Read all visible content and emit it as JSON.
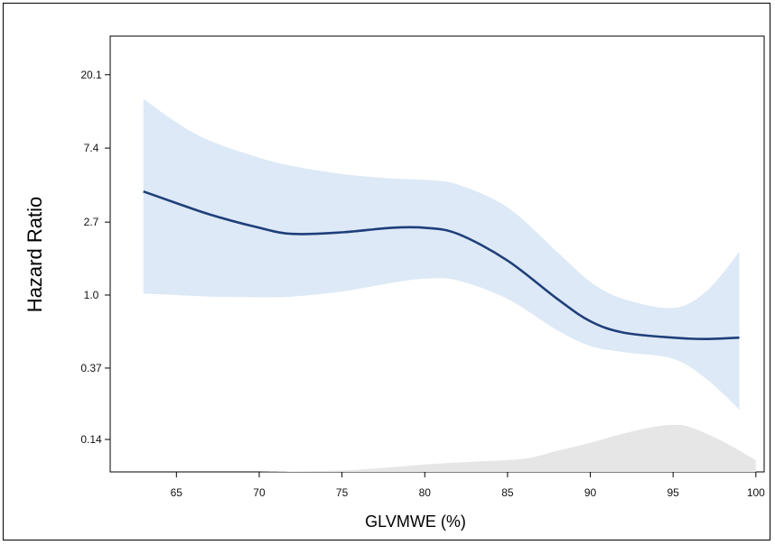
{
  "chart_data": {
    "type": "line",
    "title": "",
    "xlabel": "GLVMWE (%)",
    "ylabel": "Hazard Ratio",
    "y_scale": "log",
    "xlim": [
      61,
      100.5
    ],
    "ylim": [
      0.09,
      34
    ],
    "x_ticks": [
      65,
      70,
      75,
      80,
      85,
      90,
      95,
      100
    ],
    "y_ticks": [
      {
        "value": 20.1,
        "label": "20.1"
      },
      {
        "value": 7.4,
        "label": "7.4"
      },
      {
        "value": 2.7,
        "label": "2.7"
      },
      {
        "value": 1.0,
        "label": "1.0"
      },
      {
        "value": 0.37,
        "label": "0.37"
      },
      {
        "value": 0.14,
        "label": "0.14"
      }
    ],
    "grid": false,
    "legend": "none",
    "colors": {
      "line": "#1f3f7a",
      "band": "#dde9f6",
      "density": "#e6e6e6"
    },
    "series": [
      {
        "x": [
          63,
          65,
          67,
          70,
          72,
          75,
          78,
          80,
          82,
          85,
          88,
          90,
          92,
          95,
          97,
          99
        ],
        "y": [
          4.1,
          3.5,
          3.0,
          2.5,
          2.3,
          2.35,
          2.5,
          2.5,
          2.3,
          1.6,
          0.95,
          0.7,
          0.6,
          0.56,
          0.55,
          0.56
        ],
        "lower": [
          1.02,
          1.0,
          0.98,
          0.97,
          0.98,
          1.05,
          1.18,
          1.25,
          1.22,
          0.95,
          0.62,
          0.5,
          0.46,
          0.42,
          0.32,
          0.21
        ],
        "upper": [
          14.5,
          10.5,
          8.2,
          6.5,
          5.8,
          5.2,
          4.9,
          4.8,
          4.5,
          3.3,
          1.8,
          1.2,
          0.95,
          0.84,
          1.05,
          1.8
        ]
      }
    ],
    "density": {
      "x": [
        70,
        75,
        78,
        80,
        83,
        86,
        88,
        90,
        92,
        94,
        95,
        96,
        98,
        100
      ],
      "height": [
        0.0,
        0.03,
        0.1,
        0.16,
        0.22,
        0.28,
        0.45,
        0.62,
        0.82,
        0.97,
        1.0,
        0.96,
        0.65,
        0.25
      ]
    }
  }
}
